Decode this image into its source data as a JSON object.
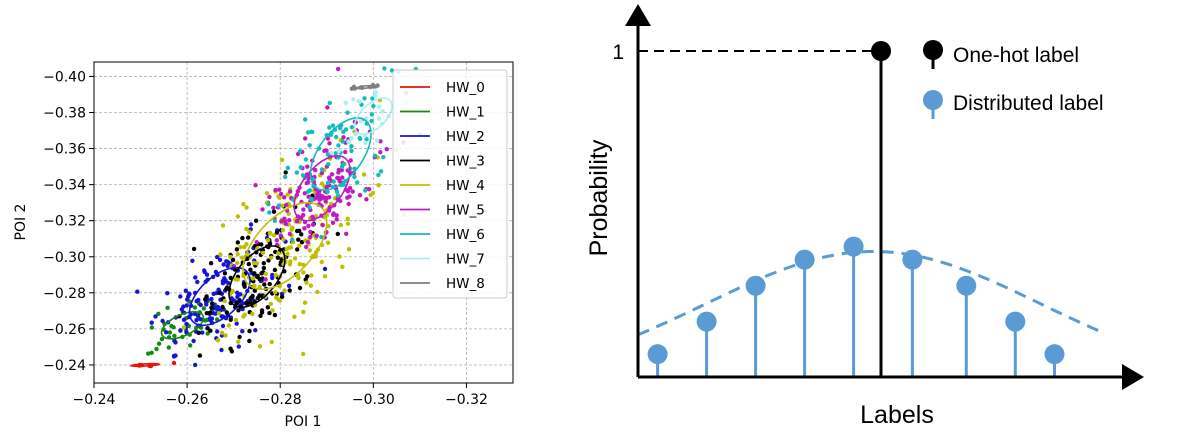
{
  "chart_data": [
    {
      "type": "scatter",
      "title": "",
      "xlabel": "POI 1",
      "ylabel": "POI 2",
      "xlim": [
        -0.24,
        -0.33
      ],
      "ylim": [
        -0.23,
        -0.408
      ],
      "x_inverted": true,
      "y_inverted": true,
      "xticks": [
        -0.24,
        -0.26,
        -0.28,
        -0.3,
        -0.32
      ],
      "xtick_labels": [
        "−0.24",
        "−0.26",
        "−0.28",
        "−0.30",
        "−0.32"
      ],
      "yticks": [
        -0.24,
        -0.26,
        -0.28,
        -0.3,
        -0.32,
        -0.34,
        -0.36,
        -0.38,
        -0.4
      ],
      "ytick_labels": [
        "−0.24",
        "−0.26",
        "−0.28",
        "−0.30",
        "−0.32",
        "−0.34",
        "−0.36",
        "−0.38",
        "−0.40"
      ],
      "grid": true,
      "legend_position": "top-right",
      "series": [
        {
          "name": "HW_0",
          "color": "#e8120c",
          "center": [
            -0.251,
            -0.24
          ],
          "spread": [
            0.003,
            0.0007
          ],
          "count": 6
        },
        {
          "name": "HW_1",
          "color": "#138b13",
          "center": [
            -0.259,
            -0.262
          ],
          "spread": [
            0.0045,
            0.0075
          ],
          "count": 45
        },
        {
          "name": "HW_2",
          "color": "#1515d5",
          "center": [
            -0.267,
            -0.278
          ],
          "spread": [
            0.0065,
            0.016
          ],
          "count": 150
        },
        {
          "name": "HW_3",
          "color": "#000000",
          "center": [
            -0.275,
            -0.289
          ],
          "spread": [
            0.006,
            0.017
          ],
          "count": 150
        },
        {
          "name": "HW_4",
          "color": "#bfbf00",
          "center": [
            -0.281,
            -0.306
          ],
          "spread": [
            0.009,
            0.024
          ],
          "count": 170
        },
        {
          "name": "HW_5",
          "color": "#c01bc0",
          "center": [
            -0.289,
            -0.338
          ],
          "spread": [
            0.006,
            0.018
          ],
          "count": 170
        },
        {
          "name": "HW_6",
          "color": "#13bcbc",
          "center": [
            -0.293,
            -0.357
          ],
          "spread": [
            0.0065,
            0.02
          ],
          "count": 90
        },
        {
          "name": "HW_7",
          "color": "#aaeef0",
          "center": [
            -0.3,
            -0.378
          ],
          "spread": [
            0.004,
            0.01
          ],
          "count": 25
        },
        {
          "name": "HW_8",
          "color": "#7f7f7f",
          "center": [
            -0.298,
            -0.394
          ],
          "spread": [
            0.0015,
            0.0008
          ],
          "count": 10
        }
      ]
    },
    {
      "type": "diagram",
      "xlabel": "Labels",
      "ylabel": "Probability",
      "y_tick_label": "1",
      "one_hot": {
        "label": "One-hot label",
        "position": 5,
        "value": 1.0,
        "color": "#000000"
      },
      "distributed": {
        "label": "Distributed label",
        "color": "#5b9bd5",
        "positions": [
          0.4,
          1.4,
          2.4,
          3.4,
          4.4,
          5.6,
          6.7,
          7.7,
          8.5
        ],
        "values": [
          0.07,
          0.17,
          0.28,
          0.36,
          0.4,
          0.36,
          0.28,
          0.17,
          0.07
        ]
      }
    }
  ],
  "labels": {
    "scatter_xlabel": "POI 1",
    "scatter_ylabel": "POI 2",
    "diagram_xlabel": "Labels",
    "diagram_ylabel": "Probability",
    "diagram_ytick": "1",
    "onehot_legend": "One-hot label",
    "distributed_legend": "Distributed label"
  }
}
